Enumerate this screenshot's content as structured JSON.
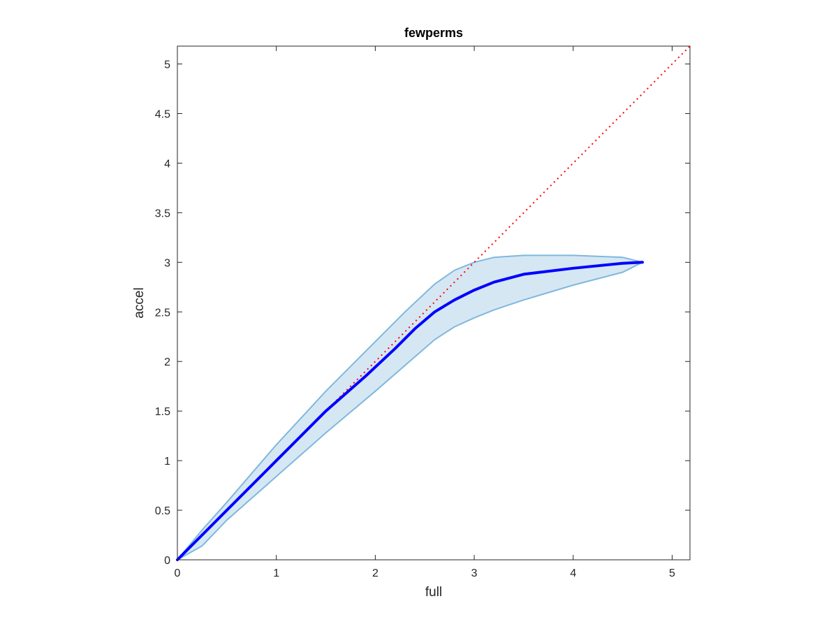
{
  "chart_data": {
    "type": "line",
    "title": "fewperms",
    "xlabel": "full",
    "ylabel": "accel",
    "xlim": [
      0,
      5.18
    ],
    "ylim": [
      0,
      5.18
    ],
    "x_ticks": [
      0,
      1,
      2,
      3,
      4,
      5
    ],
    "x_tick_labels": [
      "0",
      "1",
      "2",
      "3",
      "4",
      "5"
    ],
    "y_ticks": [
      0,
      0.5,
      1,
      1.5,
      2,
      2.5,
      3,
      3.5,
      4,
      4.5,
      5
    ],
    "y_tick_labels": [
      "0",
      "0.5",
      "1",
      "1.5",
      "2",
      "2.5",
      "3",
      "3.5",
      "4",
      "4.5",
      "5"
    ],
    "grid": false,
    "series": [
      {
        "role": "mean",
        "color": "#0000ff",
        "x": [
          0,
          0.5,
          1.0,
          1.5,
          1.9,
          2.2,
          2.4,
          2.6,
          2.8,
          3.0,
          3.2,
          3.5,
          4.0,
          4.5,
          4.7
        ],
        "y": [
          0,
          0.5,
          1.0,
          1.5,
          1.85,
          2.13,
          2.33,
          2.5,
          2.62,
          2.72,
          2.8,
          2.88,
          2.94,
          2.99,
          3.0
        ]
      },
      {
        "role": "band-upper",
        "color": "#7eb8dd",
        "x": [
          0,
          0.25,
          0.5,
          1.0,
          1.5,
          2.0,
          2.3,
          2.6,
          2.8,
          3.0,
          3.2,
          3.5,
          4.0,
          4.5,
          4.7
        ],
        "y": [
          0,
          0.3,
          0.58,
          1.16,
          1.7,
          2.2,
          2.5,
          2.78,
          2.92,
          3.0,
          3.05,
          3.07,
          3.07,
          3.05,
          3.0
        ]
      },
      {
        "role": "band-lower",
        "color": "#7eb8dd",
        "x": [
          0,
          0.25,
          0.5,
          1.0,
          1.5,
          2.0,
          2.3,
          2.6,
          2.8,
          3.0,
          3.2,
          3.5,
          4.0,
          4.5,
          4.7
        ],
        "y": [
          0,
          0.14,
          0.4,
          0.84,
          1.28,
          1.7,
          1.96,
          2.22,
          2.35,
          2.44,
          2.52,
          2.62,
          2.77,
          2.9,
          3.0
        ]
      },
      {
        "role": "reference-diagonal",
        "color": "#ff0000",
        "style": "dotted",
        "x": [
          0,
          5.18
        ],
        "y": [
          0,
          5.18
        ]
      }
    ],
    "colors": {
      "band_fill": "#d6e7f4",
      "band_edge": "#7eb8dd",
      "mean_line": "#0000ff",
      "diagonal": "#ff0000",
      "axes": "#262626"
    }
  }
}
